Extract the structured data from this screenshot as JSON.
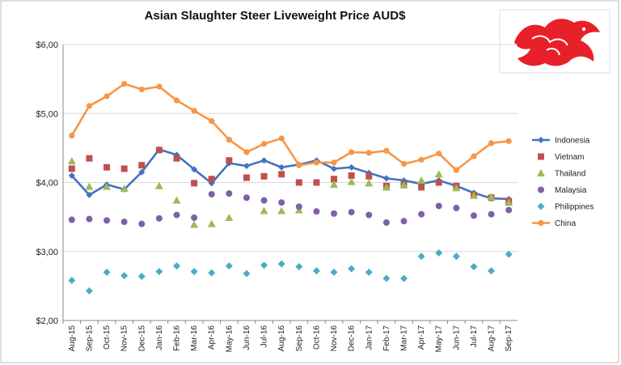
{
  "chart_data": {
    "type": "line",
    "title": "Asian Slaughter Steer Liveweight Price AUD$",
    "xlabel": "",
    "ylabel": "",
    "ylim": [
      2,
      6
    ],
    "yticks": [
      "$2,00",
      "$3,00",
      "$4,00",
      "$5,00",
      "$6,00"
    ],
    "ytick_values": [
      2,
      3,
      4,
      5,
      6
    ],
    "grid": "horizontal",
    "legend_position": "right",
    "categories": [
      "Aug-15",
      "Sep-15",
      "Oct-15",
      "Nov-15",
      "Dec-15",
      "Jan-16",
      "Feb-16",
      "Mar-16",
      "Apr-16",
      "May-16",
      "Jun-16",
      "Jul-16",
      "Aug-16",
      "Sep-16",
      "Oct-16",
      "Nov-16",
      "Dec-16",
      "Jan-17",
      "Feb-17",
      "Mar-17",
      "Apr-17",
      "May-17",
      "Jun-17",
      "Jul-17",
      "Aug-17",
      "Sep-17"
    ],
    "series": [
      {
        "name": "Indonesia",
        "style": "line-diamond",
        "color": "#4472c4",
        "values": [
          4.1,
          3.82,
          3.97,
          3.9,
          4.15,
          4.48,
          4.4,
          4.19,
          3.99,
          4.28,
          4.24,
          4.32,
          4.22,
          4.26,
          4.32,
          4.2,
          4.22,
          4.14,
          4.06,
          4.03,
          3.98,
          4.03,
          3.95,
          3.85,
          3.77,
          3.76
        ]
      },
      {
        "name": "Vietnam",
        "style": "square",
        "color": "#c0504d",
        "values": [
          4.2,
          4.35,
          4.22,
          4.2,
          4.25,
          4.47,
          4.35,
          3.99,
          4.05,
          4.32,
          4.07,
          4.09,
          4.12,
          4.0,
          4.0,
          4.05,
          4.1,
          4.09,
          3.95,
          3.97,
          3.93,
          4.0,
          3.95,
          3.82,
          3.78,
          3.73
        ]
      },
      {
        "name": "Thailand",
        "style": "triangle",
        "color": "#9bbb59",
        "values": [
          4.31,
          3.94,
          3.94,
          3.91,
          null,
          3.95,
          3.74,
          3.39,
          3.4,
          3.49,
          null,
          3.59,
          3.59,
          3.6,
          null,
          3.97,
          4.01,
          3.99,
          3.93,
          3.96,
          4.03,
          4.12,
          3.92,
          3.81,
          3.79,
          3.71
        ]
      },
      {
        "name": "Malaysia",
        "style": "circle",
        "color": "#7f5fa8",
        "values": [
          3.46,
          3.47,
          3.45,
          3.43,
          3.4,
          3.48,
          3.53,
          3.49,
          3.83,
          3.84,
          3.78,
          3.74,
          3.71,
          3.65,
          3.58,
          3.55,
          3.57,
          3.53,
          3.42,
          3.44,
          3.54,
          3.66,
          3.63,
          3.52,
          3.54,
          3.6
        ]
      },
      {
        "name": "Philippines",
        "style": "diamond",
        "color": "#4bacc6",
        "values": [
          2.58,
          2.43,
          2.7,
          2.65,
          2.64,
          2.71,
          2.79,
          2.71,
          2.69,
          2.79,
          2.68,
          2.8,
          2.82,
          2.78,
          2.72,
          2.7,
          2.75,
          2.7,
          2.61,
          2.61,
          2.93,
          2.98,
          2.93,
          2.78,
          2.72,
          2.96
        ]
      },
      {
        "name": "China",
        "style": "line-circle",
        "color": "#f79646",
        "values": [
          4.68,
          5.11,
          5.25,
          5.43,
          5.35,
          5.39,
          5.19,
          5.04,
          4.89,
          4.62,
          4.44,
          4.56,
          4.64,
          4.25,
          4.29,
          4.29,
          4.44,
          4.43,
          4.46,
          4.27,
          4.33,
          4.42,
          4.18,
          4.38,
          4.57,
          4.6
        ]
      }
    ]
  },
  "logo": {
    "icon": "red-dragon-icon",
    "color": "#e8202a"
  },
  "colors": {
    "gridline": "#d9d9d9",
    "axis": "#888888",
    "frame": "#bfbfbf"
  }
}
